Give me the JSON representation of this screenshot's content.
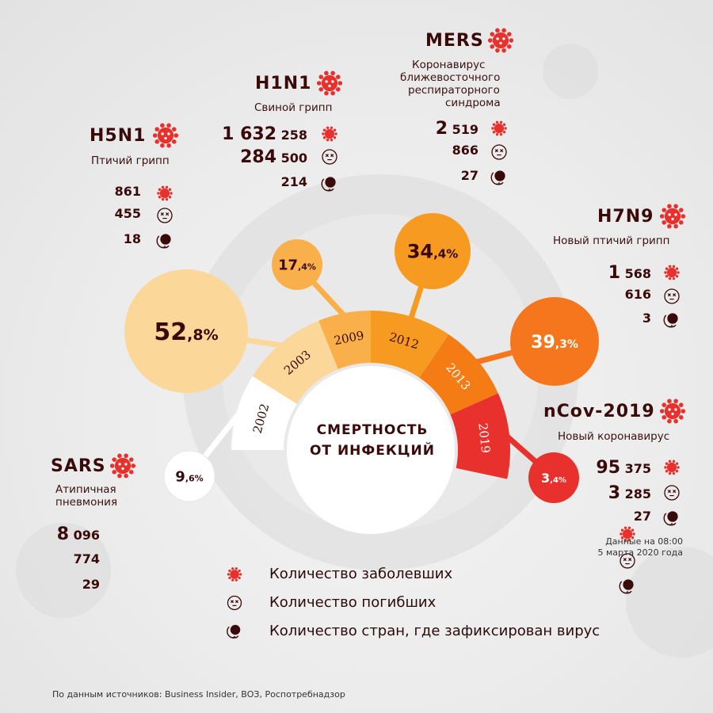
{
  "center_title": [
    "СМЕРТНОСТЬ",
    "ОТ ИНФЕКЦИЙ"
  ],
  "chart_data": {
    "type": "radial-bubble",
    "categories": [
      "2002",
      "2003",
      "2009",
      "2012",
      "2013",
      "2019"
    ],
    "values": [
      9.6,
      52.8,
      17.4,
      34.4,
      39.3,
      3.4
    ],
    "value_labels": [
      [
        "9",
        ",6%"
      ],
      [
        "52",
        ",8%"
      ],
      [
        "17",
        ",4%"
      ],
      [
        "34",
        ",4%"
      ],
      [
        "39",
        ",3%"
      ],
      [
        "3",
        ",4%"
      ]
    ],
    "segment_colors": [
      "#ffffff",
      "#fcd79a",
      "#f9b04a",
      "#f79a22",
      "#f57b14",
      "#e8302c"
    ],
    "bubble_colors": [
      "#ffffff",
      "#fcd79a",
      "#f9b04a",
      "#f79a22",
      "#f6761e",
      "#e8302c"
    ]
  },
  "viruses": [
    {
      "id": "sars",
      "name": "SARS",
      "subtitle": [
        "Атипичная",
        "пневмония"
      ],
      "cases": [
        "8",
        " 096"
      ],
      "deaths": "774",
      "countries": "29"
    },
    {
      "id": "h5n1",
      "name": "H5N1",
      "subtitle": [
        "Птичий грипп"
      ],
      "cases": [
        "861",
        ""
      ],
      "deaths": "455",
      "countries": "18"
    },
    {
      "id": "h1n1",
      "name": "H1N1",
      "subtitle": [
        "Свиной грипп"
      ],
      "cases": [
        "1 632",
        " 258"
      ],
      "deaths": [
        "284",
        " 500"
      ],
      "countries": "214"
    },
    {
      "id": "mers",
      "name": "MERS",
      "subtitle": [
        "Коронавирус",
        "ближевосточного",
        "респираторного",
        "синдрома"
      ],
      "cases": [
        "2",
        " 519"
      ],
      "deaths": "866",
      "countries": "27"
    },
    {
      "id": "h7n9",
      "name": "H7N9",
      "subtitle": [
        "Новый птичий грипп"
      ],
      "cases": [
        "1",
        " 568"
      ],
      "deaths": "616",
      "countries": "3"
    },
    {
      "id": "ncov",
      "name": "nCov-2019",
      "subtitle": [
        "Новый коронавирус"
      ],
      "cases": [
        "95",
        " 375"
      ],
      "deaths": [
        "3",
        " 285"
      ],
      "countries": "27"
    }
  ],
  "legend": {
    "cases": "Количество заболевших",
    "deaths": "Количество погибших",
    "countries": "Количество стран, где зафиксирован вирус"
  },
  "date_note": [
    "Данные на 08:00",
    "5 марта 2020 года"
  ],
  "source": "По данным источников: Business Insider, ВОЗ, Роспотребнадзор",
  "colors": {
    "dark": "#3a0a0a",
    "red": "#e8302c"
  },
  "icons": {
    "cases": "virus-icon",
    "deaths": "dead-face-icon",
    "countries": "globe-icon"
  }
}
